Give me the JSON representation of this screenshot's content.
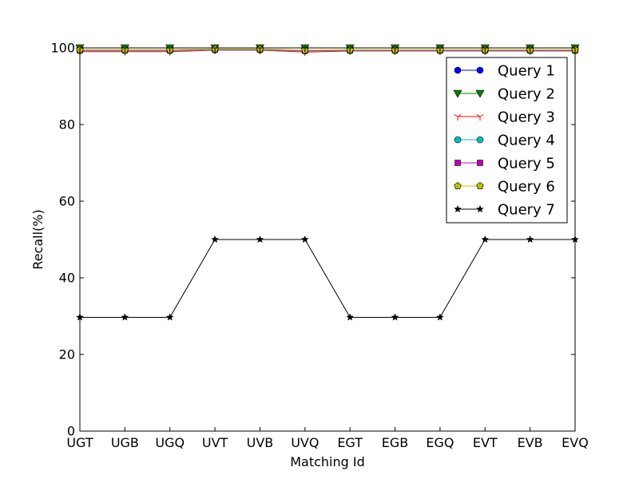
{
  "chart_data": {
    "type": "line",
    "title": "",
    "xlabel": "Matching Id",
    "ylabel": "Recall(%)",
    "categories": [
      "UGT",
      "UGB",
      "UGQ",
      "UVT",
      "UVB",
      "UVQ",
      "EGT",
      "EGB",
      "EGQ",
      "EVT",
      "EVB",
      "EVQ"
    ],
    "ylim": [
      0,
      100
    ],
    "yticks": [
      0,
      20,
      40,
      60,
      80,
      100
    ],
    "grid": false,
    "legend_position": "top-right",
    "series": [
      {
        "name": "Query 1",
        "marker": "circle",
        "color": "#0000ff",
        "values": [
          100,
          100,
          100,
          100,
          100,
          100,
          100,
          100,
          100,
          100,
          100,
          100
        ]
      },
      {
        "name": "Query 2",
        "marker": "triangle-down",
        "color": "#008000",
        "values": [
          100,
          100,
          100,
          100,
          100,
          100,
          100,
          100,
          100,
          100,
          100,
          100
        ]
      },
      {
        "name": "Query 3",
        "marker": "tri-down",
        "color": "#ff0000",
        "values": [
          99,
          99,
          99,
          99.4,
          99.4,
          98.9,
          99.2,
          99.2,
          99.2,
          99.2,
          99.2,
          99.2
        ]
      },
      {
        "name": "Query 4",
        "marker": "circle",
        "color": "#00bfbf",
        "values": [
          99.3,
          99.3,
          99.3,
          99.5,
          99.5,
          99.2,
          99.3,
          99.3,
          99.3,
          99.3,
          99.3,
          99.3
        ]
      },
      {
        "name": "Query 5",
        "marker": "square",
        "color": "#bf00bf",
        "values": [
          99.4,
          99.4,
          99.4,
          99.6,
          99.6,
          99.3,
          99.4,
          99.4,
          99.4,
          99.4,
          99.4,
          99.4
        ]
      },
      {
        "name": "Query 6",
        "marker": "pentagon",
        "color": "#bfbf00",
        "values": [
          99.5,
          99.5,
          99.5,
          99.7,
          99.7,
          99.4,
          99.5,
          99.5,
          99.5,
          99.5,
          99.5,
          99.5
        ]
      },
      {
        "name": "Query 7",
        "marker": "star",
        "color": "#000000",
        "values": [
          29.7,
          29.7,
          29.7,
          50,
          50,
          50,
          29.7,
          29.7,
          29.7,
          50,
          50,
          50
        ]
      }
    ]
  }
}
